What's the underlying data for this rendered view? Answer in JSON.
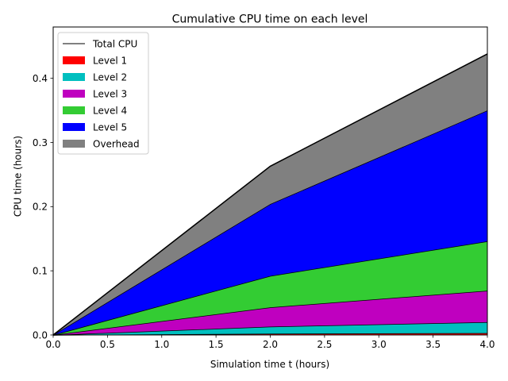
{
  "chart_data": {
    "type": "area",
    "title": "Cumulative CPU time on each level",
    "xlabel": "Simulation time t (hours)",
    "ylabel": "CPU time (hours)",
    "x": [
      0.0,
      2.0,
      4.0
    ],
    "xlim": [
      0.0,
      4.0
    ],
    "ylim": [
      0.0,
      0.48
    ],
    "x_ticks": [
      "0.0",
      "0.5",
      "1.0",
      "1.5",
      "2.0",
      "2.5",
      "3.0",
      "3.5",
      "4.0"
    ],
    "x_tick_values": [
      0.0,
      0.5,
      1.0,
      1.5,
      2.0,
      2.5,
      3.0,
      3.5,
      4.0
    ],
    "y_ticks": [
      "0.0",
      "0.1",
      "0.2",
      "0.3",
      "0.4"
    ],
    "y_tick_values": [
      0.0,
      0.1,
      0.2,
      0.3,
      0.4
    ],
    "stacked": true,
    "grid": false,
    "legend_position": "top-left",
    "total_line": {
      "name": "Total CPU",
      "color": "#000000",
      "values": [
        0.0,
        0.263,
        0.438
      ]
    },
    "series": [
      {
        "name": "Level 1",
        "color": "#ff0000",
        "values": [
          0.0,
          0.002,
          0.003
        ]
      },
      {
        "name": "Level 2",
        "color": "#00bfbf",
        "values": [
          0.0,
          0.011,
          0.017
        ]
      },
      {
        "name": "Level 3",
        "color": "#bf00bf",
        "values": [
          0.0,
          0.03,
          0.049
        ]
      },
      {
        "name": "Level 4",
        "color": "#33cc33",
        "values": [
          0.0,
          0.049,
          0.077
        ]
      },
      {
        "name": "Level 5",
        "color": "#0000ff",
        "values": [
          0.0,
          0.112,
          0.204
        ]
      },
      {
        "name": "Overhead",
        "color": "#808080",
        "values": [
          0.0,
          0.059,
          0.088
        ]
      }
    ]
  }
}
